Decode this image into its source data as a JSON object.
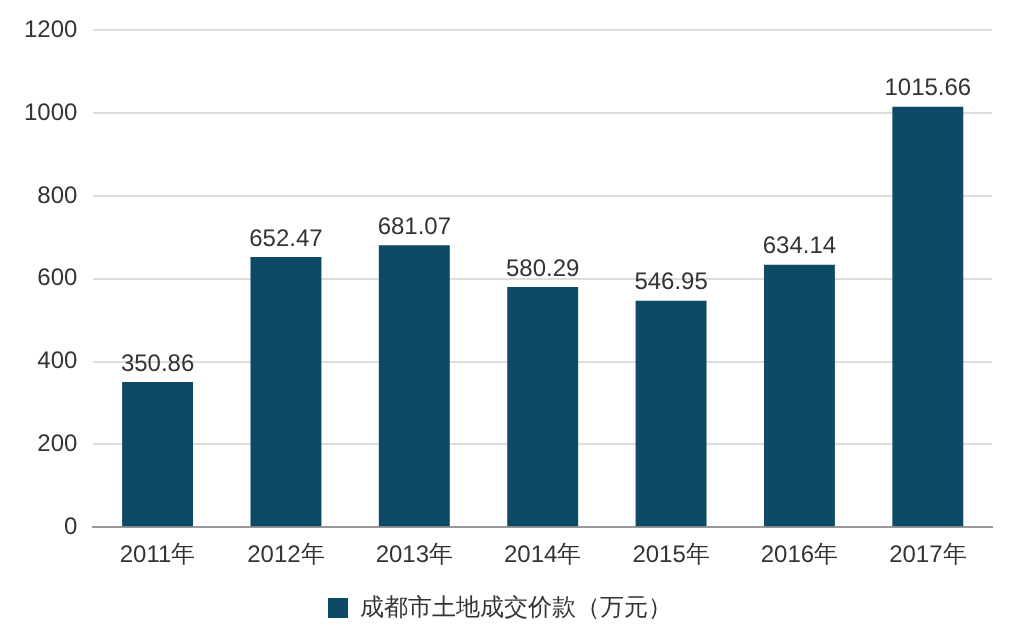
{
  "chart_data": {
    "type": "bar",
    "categories": [
      "2011年",
      "2012年",
      "2013年",
      "2014年",
      "2015年",
      "2016年",
      "2017年"
    ],
    "series": [
      {
        "name": "成都市土地成交价款（万元）",
        "color": "#0d4a66",
        "values": [
          350.86,
          652.47,
          681.07,
          580.29,
          546.95,
          634.14,
          1015.66
        ]
      }
    ],
    "ylim": [
      0,
      1200
    ],
    "yticks": [
      0,
      200,
      400,
      600,
      800,
      1000,
      1200
    ],
    "grid": "y",
    "legend": "bottom",
    "data_labels": true
  }
}
